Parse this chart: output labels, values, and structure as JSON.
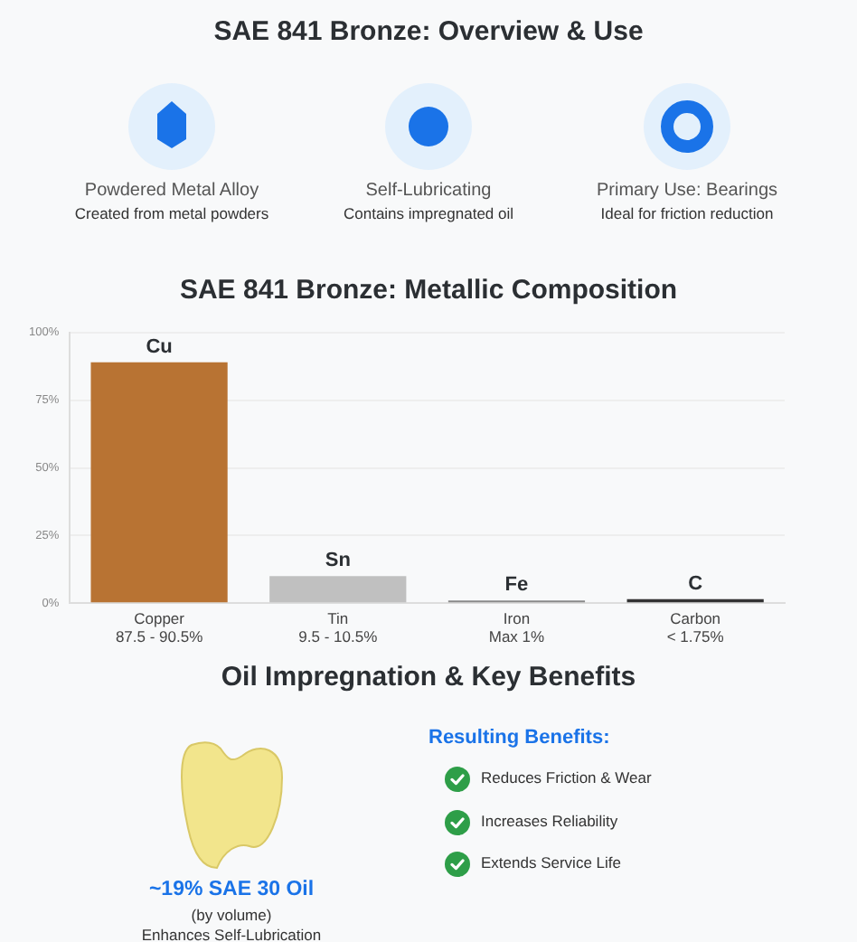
{
  "chart_data": [
    {
      "type": "other",
      "title": "SAE 841 Bronze: Overview & Use",
      "annotations": [
        "Powdered Metal Alloy",
        "Created from metal powders",
        "Self-Lubricating",
        "Contains impregnated oil",
        "Primary Use: Bearings",
        "Ideal for friction reduction"
      ]
    },
    {
      "type": "bar",
      "title": "SAE 841 Bronze: Metallic Composition",
      "categories": [
        "Copper\n87.5 - 90.5%",
        "Tin\n9.5 - 10.5%",
        "Iron\nMax 1%",
        "Carbon\n< 1.75%"
      ],
      "values": [
        89,
        10,
        1,
        1.5
      ],
      "colors": [
        "#b87333",
        "#c0c0c0",
        "#8a8a8a",
        "#333333"
      ],
      "ylim": [
        0,
        100
      ],
      "yticks": [
        {
          "value": 0,
          "label": "0%"
        },
        {
          "value": 25,
          "label": "25%"
        },
        {
          "value": 50,
          "label": "50%"
        },
        {
          "value": 75,
          "label": "75%"
        },
        {
          "value": 100,
          "label": "100%"
        }
      ],
      "grid": "y",
      "annotations": [
        {
          "text": "Cu",
          "x": "Copper\n87.5 - 90.5%",
          "y": 89
        },
        {
          "text": "Sn",
          "x": "Tin\n9.5 - 10.5%",
          "y": 10
        },
        {
          "text": "Fe",
          "x": "Iron\nMax 1%",
          "y": 1
        },
        {
          "text": "C",
          "x": "Carbon\n< 1.75%",
          "y": 1.5
        }
      ]
    },
    {
      "type": "other",
      "title": "Oil Impregnation & Key Benefits",
      "annotations": [
        "~19% SAE 30 Oil",
        "(by volume)",
        "Enhances Self-Lubrication",
        "Resulting Benefits:",
        "Reduces Friction & Wear",
        "Increases Reliability",
        "Extends Service Life"
      ]
    }
  ]
}
